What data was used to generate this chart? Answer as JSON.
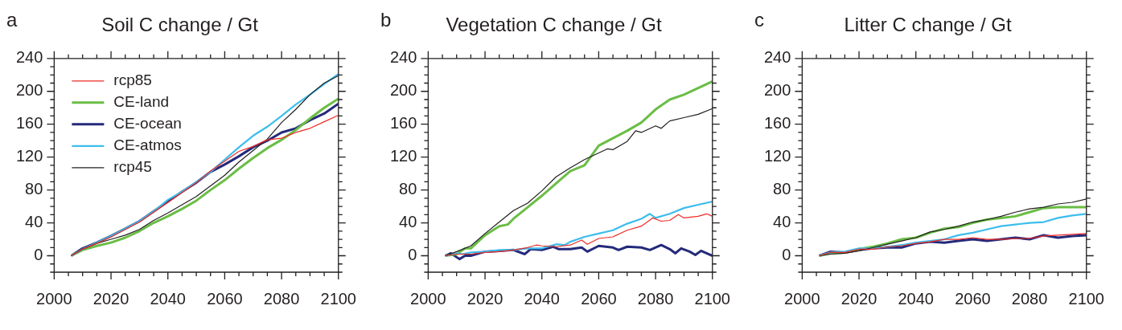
{
  "chart_data": [
    {
      "type": "line",
      "title": "Soil C change / Gt",
      "annotations": [
        "a"
      ],
      "x": [
        2006,
        2010,
        2015,
        2020,
        2025,
        2030,
        2035,
        2040,
        2045,
        2050,
        2055,
        2060,
        2065,
        2070,
        2075,
        2080,
        2085,
        2090,
        2095,
        2100
      ],
      "xlim": [
        2000,
        2100
      ],
      "xticks": [
        2000,
        {
          "value": 2005,
          "label": null
        },
        {
          "value": 2010,
          "label": null
        },
        {
          "value": 2015,
          "label": null
        },
        2020,
        {
          "value": 2025,
          "label": null
        },
        {
          "value": 2030,
          "label": null
        },
        {
          "value": 2035,
          "label": null
        },
        2040,
        {
          "value": 2045,
          "label": null
        },
        {
          "value": 2050,
          "label": null
        },
        {
          "value": 2055,
          "label": null
        },
        2060,
        {
          "value": 2065,
          "label": null
        },
        {
          "value": 2070,
          "label": null
        },
        {
          "value": 2075,
          "label": null
        },
        2080,
        {
          "value": 2085,
          "label": null
        },
        {
          "value": 2090,
          "label": null
        },
        {
          "value": 2095,
          "label": null
        },
        2100
      ],
      "ylim": [
        -20,
        240
      ],
      "yticks": [
        {
          "value": -20,
          "label": null
        },
        {
          "value": -10,
          "label": null
        },
        0,
        {
          "value": 10,
          "label": null
        },
        {
          "value": 20,
          "label": null
        },
        {
          "value": 30,
          "label": null
        },
        40,
        {
          "value": 50,
          "label": null
        },
        {
          "value": 60,
          "label": null
        },
        {
          "value": 70,
          "label": null
        },
        80,
        {
          "value": 90,
          "label": null
        },
        {
          "value": 100,
          "label": null
        },
        {
          "value": 110,
          "label": null
        },
        120,
        {
          "value": 130,
          "label": null
        },
        {
          "value": 140,
          "label": null
        },
        {
          "value": 150,
          "label": null
        },
        160,
        {
          "value": 170,
          "label": null
        },
        {
          "value": 180,
          "label": null
        },
        {
          "value": 190,
          "label": null
        },
        200,
        {
          "value": 210,
          "label": null
        },
        {
          "value": 220,
          "label": null
        },
        {
          "value": 230,
          "label": null
        },
        240
      ],
      "grid": false,
      "legend": "top left",
      "marker": "none",
      "series": [
        {
          "name": "rcp85",
          "color": "#ee2a24",
          "values": [
            0,
            8,
            15,
            23,
            32,
            41,
            53,
            65,
            77,
            89,
            103,
            115,
            127,
            133,
            141,
            143,
            150,
            155,
            163,
            171
          ]
        },
        {
          "name": "CE-land",
          "color": "#6abd45",
          "values": [
            0,
            7,
            12,
            16,
            22,
            30,
            40,
            48,
            57,
            67,
            80,
            92,
            106,
            119,
            131,
            141,
            153,
            167,
            180,
            191
          ]
        },
        {
          "name": "CE-ocean",
          "color": "#242a7a",
          "values": [
            0,
            9,
            16,
            24,
            33,
            42,
            54,
            66,
            78,
            89,
            102,
            111,
            121,
            132,
            140,
            150,
            155,
            165,
            173,
            185
          ]
        },
        {
          "name": "CE-atmos",
          "color": "#3dbdec",
          "values": [
            0,
            8,
            16,
            24,
            33,
            42,
            54,
            68,
            78,
            90,
            102,
            117,
            132,
            146,
            157,
            170,
            184,
            196,
            209,
            221
          ]
        },
        {
          "name": "rcp45",
          "color": "#231f20",
          "values": [
            0,
            8,
            15,
            20,
            25,
            32,
            43,
            52,
            62,
            72,
            85,
            98,
            114,
            128,
            142,
            162,
            178,
            196,
            210,
            219
          ]
        }
      ]
    },
    {
      "type": "line",
      "title": "Vegetation C change / Gt",
      "annotations": [
        "b"
      ],
      "xlim": [
        2000,
        2100
      ],
      "xticks": [
        2000,
        {
          "value": 2005,
          "label": null
        },
        {
          "value": 2010,
          "label": null
        },
        {
          "value": 2015,
          "label": null
        },
        2020,
        {
          "value": 2025,
          "label": null
        },
        {
          "value": 2030,
          "label": null
        },
        {
          "value": 2035,
          "label": null
        },
        2040,
        {
          "value": 2045,
          "label": null
        },
        {
          "value": 2050,
          "label": null
        },
        {
          "value": 2055,
          "label": null
        },
        2060,
        {
          "value": 2065,
          "label": null
        },
        {
          "value": 2070,
          "label": null
        },
        {
          "value": 2075,
          "label": null
        },
        2080,
        {
          "value": 2085,
          "label": null
        },
        {
          "value": 2090,
          "label": null
        },
        {
          "value": 2095,
          "label": null
        },
        2100
      ],
      "ylim": [
        -20,
        240
      ],
      "yticks": [
        {
          "value": -20,
          "label": null
        },
        {
          "value": -10,
          "label": null
        },
        0,
        {
          "value": 10,
          "label": null
        },
        {
          "value": 20,
          "label": null
        },
        {
          "value": 30,
          "label": null
        },
        40,
        {
          "value": 50,
          "label": null
        },
        {
          "value": 60,
          "label": null
        },
        {
          "value": 70,
          "label": null
        },
        80,
        {
          "value": 90,
          "label": null
        },
        {
          "value": 100,
          "label": null
        },
        {
          "value": 110,
          "label": null
        },
        120,
        {
          "value": 130,
          "label": null
        },
        {
          "value": 140,
          "label": null
        },
        {
          "value": 150,
          "label": null
        },
        160,
        {
          "value": 170,
          "label": null
        },
        {
          "value": 180,
          "label": null
        },
        {
          "value": 190,
          "label": null
        },
        200,
        {
          "value": 210,
          "label": null
        },
        {
          "value": 220,
          "label": null
        },
        {
          "value": 230,
          "label": null
        },
        240
      ],
      "grid": false,
      "marker": "none",
      "series": [
        {
          "color": "#ee2a24",
          "x": [
            2006,
            2010,
            2015,
            2020,
            2025,
            2030,
            2035,
            2038,
            2040,
            2045,
            2050,
            2054,
            2056,
            2060,
            2065,
            2070,
            2075,
            2079,
            2082,
            2085,
            2088,
            2090,
            2095,
            2098,
            2100
          ],
          "values": [
            0,
            2,
            2,
            4,
            5,
            7,
            10,
            13,
            12,
            11,
            13,
            19,
            14,
            21,
            23,
            31,
            36,
            46,
            42,
            43,
            50,
            46,
            48,
            51,
            48
          ]
        },
        {
          "color": "#6abd45",
          "x": [
            2006,
            2010,
            2013,
            2015,
            2020,
            2025,
            2028,
            2030,
            2035,
            2040,
            2045,
            2050,
            2055,
            2060,
            2065,
            2070,
            2075,
            2080,
            2085,
            2090,
            2095,
            2100
          ],
          "values": [
            0,
            2,
            9,
            9,
            25,
            36,
            38,
            45,
            59,
            73,
            88,
            103,
            110,
            134,
            143,
            152,
            162,
            178,
            190,
            196,
            204,
            212
          ]
        },
        {
          "color": "#242a7a",
          "x": [
            2006,
            2008,
            2011,
            2013,
            2015,
            2020,
            2025,
            2030,
            2034,
            2036,
            2040,
            2044,
            2046,
            2050,
            2054,
            2056,
            2060,
            2065,
            2067,
            2070,
            2075,
            2078,
            2082,
            2085,
            2087,
            2089,
            2092,
            2094,
            2096,
            2100
          ],
          "values": [
            0,
            3,
            -4,
            0,
            0,
            5,
            6,
            7,
            2,
            8,
            7,
            11,
            8,
            8,
            10,
            5,
            12,
            10,
            7,
            11,
            10,
            7,
            13,
            8,
            3,
            9,
            5,
            1,
            6,
            0
          ]
        },
        {
          "color": "#3dbdec",
          "x": [
            2006,
            2010,
            2012,
            2015,
            2020,
            2025,
            2030,
            2035,
            2040,
            2045,
            2048,
            2050,
            2055,
            2060,
            2065,
            2070,
            2075,
            2078,
            2080,
            2085,
            2090,
            2095,
            2100
          ],
          "values": [
            0,
            3,
            2,
            4,
            5,
            7,
            7,
            9,
            9,
            14,
            13,
            17,
            23,
            27,
            31,
            39,
            45,
            51,
            46,
            51,
            58,
            62,
            66
          ]
        },
        {
          "color": "#231f20",
          "x": [
            2006,
            2010,
            2015,
            2020,
            2025,
            2030,
            2035,
            2040,
            2045,
            2050,
            2055,
            2060,
            2063,
            2065,
            2070,
            2073,
            2075,
            2080,
            2082,
            2085,
            2090,
            2095,
            2100
          ],
          "values": [
            0,
            5,
            12,
            27,
            41,
            55,
            64,
            79,
            96,
            107,
            117,
            125,
            130,
            129,
            139,
            152,
            150,
            158,
            155,
            164,
            168,
            172,
            179
          ]
        }
      ]
    },
    {
      "type": "line",
      "title": "Litter C change / Gt",
      "annotations": [
        "c"
      ],
      "x": [
        2006,
        2010,
        2015,
        2020,
        2025,
        2030,
        2035,
        2040,
        2045,
        2050,
        2055,
        2060,
        2065,
        2070,
        2075,
        2080,
        2085,
        2090,
        2095,
        2100
      ],
      "xlim": [
        2000,
        2100
      ],
      "xticks": [
        2000,
        {
          "value": 2005,
          "label": null
        },
        {
          "value": 2010,
          "label": null
        },
        {
          "value": 2015,
          "label": null
        },
        2020,
        {
          "value": 2025,
          "label": null
        },
        {
          "value": 2030,
          "label": null
        },
        {
          "value": 2035,
          "label": null
        },
        2040,
        {
          "value": 2045,
          "label": null
        },
        {
          "value": 2050,
          "label": null
        },
        {
          "value": 2055,
          "label": null
        },
        2060,
        {
          "value": 2065,
          "label": null
        },
        {
          "value": 2070,
          "label": null
        },
        {
          "value": 2075,
          "label": null
        },
        2080,
        {
          "value": 2085,
          "label": null
        },
        {
          "value": 2090,
          "label": null
        },
        {
          "value": 2095,
          "label": null
        },
        2100
      ],
      "ylim": [
        -20,
        240
      ],
      "yticks": [
        {
          "value": -20,
          "label": null
        },
        {
          "value": -10,
          "label": null
        },
        0,
        {
          "value": 10,
          "label": null
        },
        {
          "value": 20,
          "label": null
        },
        {
          "value": 30,
          "label": null
        },
        40,
        {
          "value": 50,
          "label": null
        },
        {
          "value": 60,
          "label": null
        },
        {
          "value": 70,
          "label": null
        },
        80,
        {
          "value": 90,
          "label": null
        },
        {
          "value": 100,
          "label": null
        },
        {
          "value": 110,
          "label": null
        },
        120,
        {
          "value": 130,
          "label": null
        },
        {
          "value": 140,
          "label": null
        },
        {
          "value": 150,
          "label": null
        },
        160,
        {
          "value": 170,
          "label": null
        },
        {
          "value": 180,
          "label": null
        },
        {
          "value": 190,
          "label": null
        },
        200,
        {
          "value": 210,
          "label": null
        },
        {
          "value": 220,
          "label": null
        },
        {
          "value": 230,
          "label": null
        },
        240
      ],
      "grid": false,
      "marker": "none",
      "series": [
        {
          "color": "#ee2a24",
          "values": [
            0,
            4,
            4,
            8,
            8,
            11,
            12,
            15,
            17,
            20,
            20,
            22,
            20,
            20,
            21,
            21,
            24,
            25,
            26,
            27
          ]
        },
        {
          "color": "#6abd45",
          "values": [
            0,
            3,
            4,
            8,
            11,
            15,
            20,
            22,
            28,
            33,
            35,
            40,
            44,
            46,
            48,
            53,
            58,
            59,
            59,
            59
          ]
        },
        {
          "color": "#242a7a",
          "values": [
            0,
            5,
            4,
            7,
            9,
            10,
            10,
            15,
            17,
            16,
            18,
            20,
            18,
            20,
            22,
            20,
            25,
            22,
            24,
            25
          ]
        },
        {
          "color": "#3dbdec",
          "values": [
            0,
            4,
            5,
            9,
            9,
            11,
            13,
            16,
            18,
            20,
            25,
            28,
            32,
            36,
            38,
            40,
            41,
            46,
            49,
            51
          ]
        },
        {
          "color": "#231f20",
          "values": [
            0,
            2,
            3,
            6,
            10,
            14,
            18,
            22,
            29,
            32,
            36,
            41,
            44,
            48,
            53,
            57,
            59,
            63,
            65,
            69
          ]
        }
      ]
    }
  ]
}
